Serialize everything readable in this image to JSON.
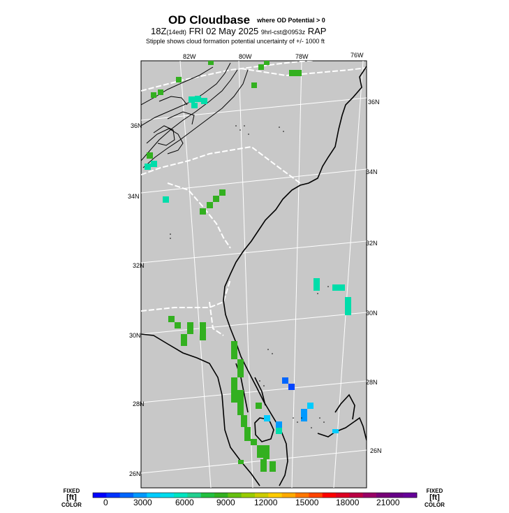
{
  "title": {
    "main": "OD Cloudbase",
    "main_sub": "where OD Potential > 0",
    "line2_time": "18Z",
    "line2_local": "(14edt)",
    "line2_date": "FRI 02 May 2025",
    "line2_fcst": "9hrl-cst@0953z",
    "line2_model": "RAP",
    "line3": "Stipple shows cloud formation potential uncertainty of +/- 1000 ft"
  },
  "map": {
    "background_color": "#c8c8c8",
    "lon_labels": [
      "82W",
      "80W",
      "78W",
      "76W"
    ],
    "lat_labels_right": [
      "36N",
      "34N",
      "32N",
      "30N",
      "28N",
      "26N"
    ],
    "lat_labels_left": [
      "36N",
      "34N",
      "32N",
      "30N",
      "28N",
      "26N"
    ]
  },
  "colorbar": {
    "left_label_top": "FIXED",
    "left_label_mid": "[ft]",
    "left_label_bot": "COLOR",
    "right_label_top": "FIXED",
    "right_label_mid": "[ft]",
    "right_label_bot": "COLOR",
    "tick_labels": [
      "0",
      "3000",
      "6000",
      "9000",
      "12000",
      "15000",
      "18000",
      "21000"
    ],
    "colors": [
      "#0000ff",
      "#0033ff",
      "#0066ff",
      "#0099ff",
      "#00ccff",
      "#00ddee",
      "#00e5c0",
      "#22d090",
      "#22c040",
      "#33b020",
      "#66c010",
      "#99cc00",
      "#cccc00",
      "#ffcc00",
      "#ffaa00",
      "#ff7700",
      "#ff4400",
      "#ff0000",
      "#dd0022",
      "#bb0044",
      "#990066",
      "#770077",
      "#660088",
      "#660099"
    ]
  }
}
